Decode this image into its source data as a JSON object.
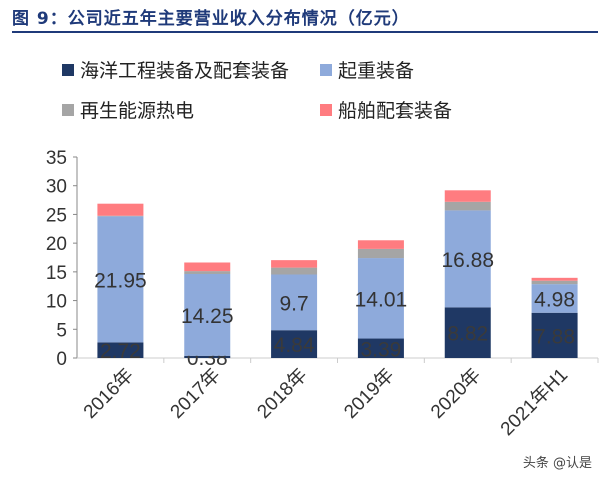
{
  "title": "图 9：公司近五年主要营业收入分布情况（亿元）",
  "watermark": "头条 @认是",
  "chart_data": {
    "type": "bar",
    "stacked": true,
    "categories": [
      "2016年",
      "2017年",
      "2018年",
      "2019年",
      "2020年",
      "2021年H1"
    ],
    "ylim": [
      0,
      35
    ],
    "yticks": [
      0,
      5,
      10,
      15,
      20,
      25,
      30,
      35
    ],
    "legend_placement": "top",
    "grid": false,
    "series": [
      {
        "name": "海洋工程装备及配套装备",
        "color": "#1f3864",
        "values": [
          2.72,
          0.38,
          4.84,
          3.39,
          8.82,
          7.88
        ],
        "labels": true
      },
      {
        "name": "起重装备",
        "color": "#8eaadb",
        "values": [
          21.95,
          14.25,
          9.7,
          14.01,
          16.88,
          4.98
        ],
        "labels": true
      },
      {
        "name": "再生能源热电",
        "color": "#a5a5a5",
        "values": [
          0.1,
          0.5,
          1.2,
          1.6,
          1.5,
          0.6
        ],
        "labels": false
      },
      {
        "name": "船舶配套装备",
        "color": "#ff7c80",
        "values": [
          2.1,
          1.5,
          1.3,
          1.5,
          2.0,
          0.5
        ],
        "labels": false
      }
    ]
  }
}
